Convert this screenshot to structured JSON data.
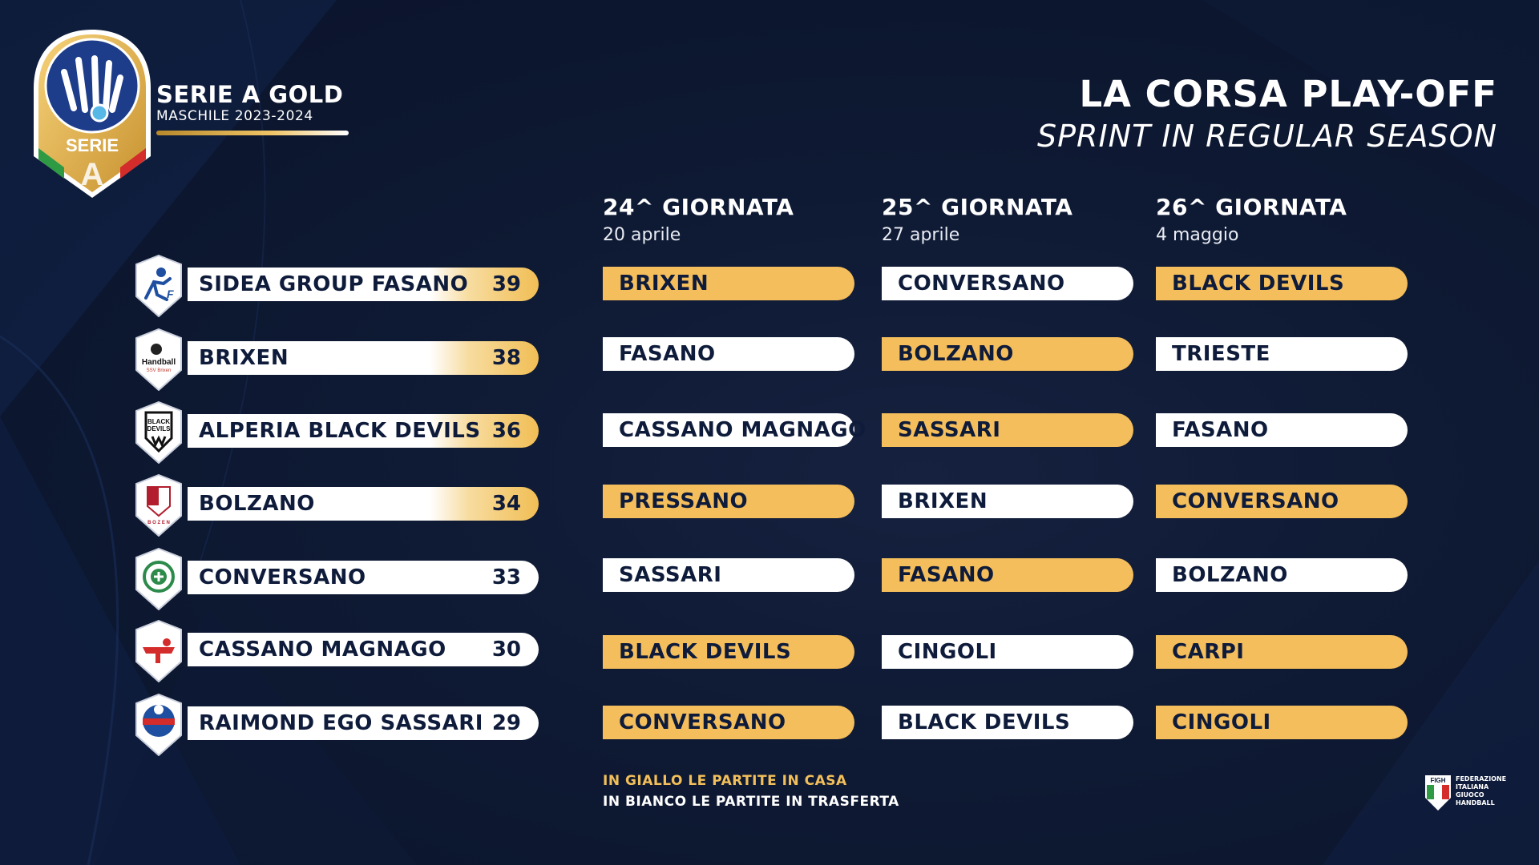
{
  "brand": {
    "league": "SERIE A GOLD",
    "season": "MASCHILE 2023-2024",
    "badge_word": "SERIE",
    "badge_letter": "A"
  },
  "headline": {
    "title": "LA CORSA PLAY-OFF",
    "subtitle": "SPRINT IN REGULAR SEASON"
  },
  "rounds": [
    {
      "title": "24^ GIORNATA",
      "date": "20 aprile"
    },
    {
      "title": "25^ GIORNATA",
      "date": "27 aprile"
    },
    {
      "title": "26^ GIORNATA",
      "date": "4 maggio"
    }
  ],
  "standings": [
    {
      "team": "SIDEA GROUP FASANO",
      "points": "39",
      "logo": "fasano-logo"
    },
    {
      "team": "BRIXEN",
      "points": "38",
      "logo": "brixen-handball-logo"
    },
    {
      "team": "ALPERIA BLACK DEVILS",
      "points": "36",
      "logo": "black-devils-logo"
    },
    {
      "team": "BOLZANO",
      "points": "34",
      "logo": "bolzano-ssv-logo"
    },
    {
      "team": "CONVERSANO",
      "points": "33",
      "logo": "conversano-logo"
    },
    {
      "team": "CASSANO MAGNAGO",
      "points": "30",
      "logo": "cassano-magnago-logo"
    },
    {
      "team": "RAIMOND EGO SASSARI",
      "points": "29",
      "logo": "sassari-logo"
    }
  ],
  "fixtures": [
    [
      {
        "opponent": "BRIXEN",
        "home": true
      },
      {
        "opponent": "CONVERSANO",
        "home": false
      },
      {
        "opponent": "BLACK DEVILS",
        "home": true
      }
    ],
    [
      {
        "opponent": "FASANO",
        "home": false
      },
      {
        "opponent": "BOLZANO",
        "home": true
      },
      {
        "opponent": "TRIESTE",
        "home": false
      }
    ],
    [
      {
        "opponent": "CASSANO MAGNAGO",
        "home": false
      },
      {
        "opponent": "SASSARI",
        "home": true
      },
      {
        "opponent": "FASANO",
        "home": false
      }
    ],
    [
      {
        "opponent": "PRESSANO",
        "home": true
      },
      {
        "opponent": "BRIXEN",
        "home": false
      },
      {
        "opponent": "CONVERSANO",
        "home": true
      }
    ],
    [
      {
        "opponent": "SASSARI",
        "home": false
      },
      {
        "opponent": "FASANO",
        "home": true
      },
      {
        "opponent": "BOLZANO",
        "home": false
      }
    ],
    [
      {
        "opponent": "BLACK DEVILS",
        "home": true
      },
      {
        "opponent": "CINGOLI",
        "home": false
      },
      {
        "opponent": "CARPI",
        "home": true
      }
    ],
    [
      {
        "opponent": "CONVERSANO",
        "home": true
      },
      {
        "opponent": "BLACK DEVILS",
        "home": false
      },
      {
        "opponent": "CINGOLI",
        "home": true
      }
    ]
  ],
  "legend": {
    "home": "IN GIALLO LE PARTITE IN CASA",
    "away": "IN BIANCO LE PARTITE IN TRASFERTA"
  },
  "federation": {
    "acronym": "FIGH",
    "line1": "FEDERAZIONE",
    "line2": "ITALIANA",
    "line3": "GIUOCO",
    "line4": "HANDBALL"
  },
  "colors": {
    "background": "#0e1933",
    "home_fill": "#f4be5c",
    "away_fill": "#ffffff",
    "text_dark": "#0e1b3a",
    "gold": "#f2bf5a"
  }
}
